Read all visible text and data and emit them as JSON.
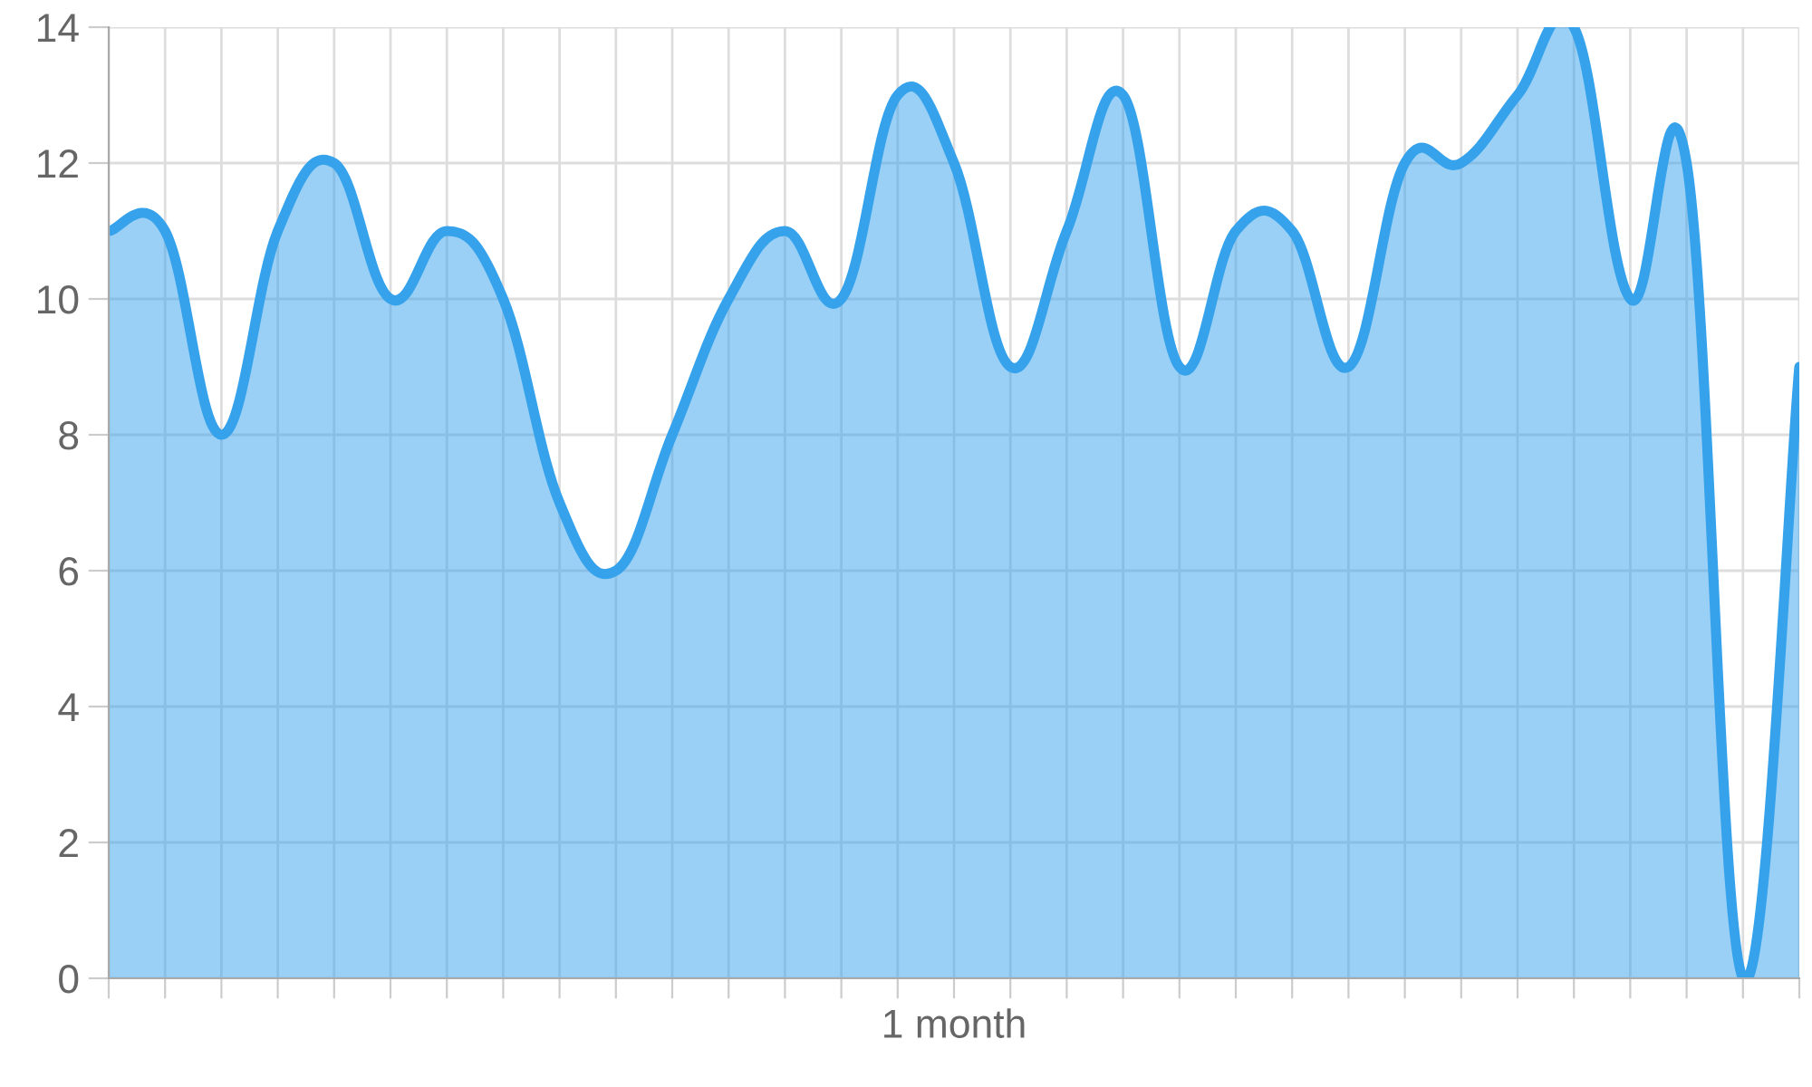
{
  "chart_data": {
    "type": "area",
    "xlabel": "1 month",
    "categories": [
      null,
      null,
      null,
      null,
      null,
      null,
      null,
      null,
      null,
      null,
      null,
      null,
      null,
      null,
      null,
      null,
      null,
      null,
      null,
      null,
      null,
      null,
      null,
      null,
      null,
      null,
      null,
      null,
      null,
      null,
      null
    ],
    "series": [
      {
        "color": "#36a2eb",
        "values": [
          11,
          11,
          8,
          11,
          12,
          10,
          11,
          10,
          7,
          6,
          8,
          10,
          11,
          10,
          13,
          12,
          9,
          11,
          13,
          9,
          11,
          11,
          9,
          12,
          12,
          13,
          14,
          10,
          12,
          0,
          9
        ]
      }
    ],
    "ylim": [
      0,
      14
    ],
    "yticks": [
      0,
      2,
      4,
      6,
      8,
      10,
      12,
      14
    ],
    "grid": true,
    "tick_labels": "y",
    "marker": "none"
  }
}
